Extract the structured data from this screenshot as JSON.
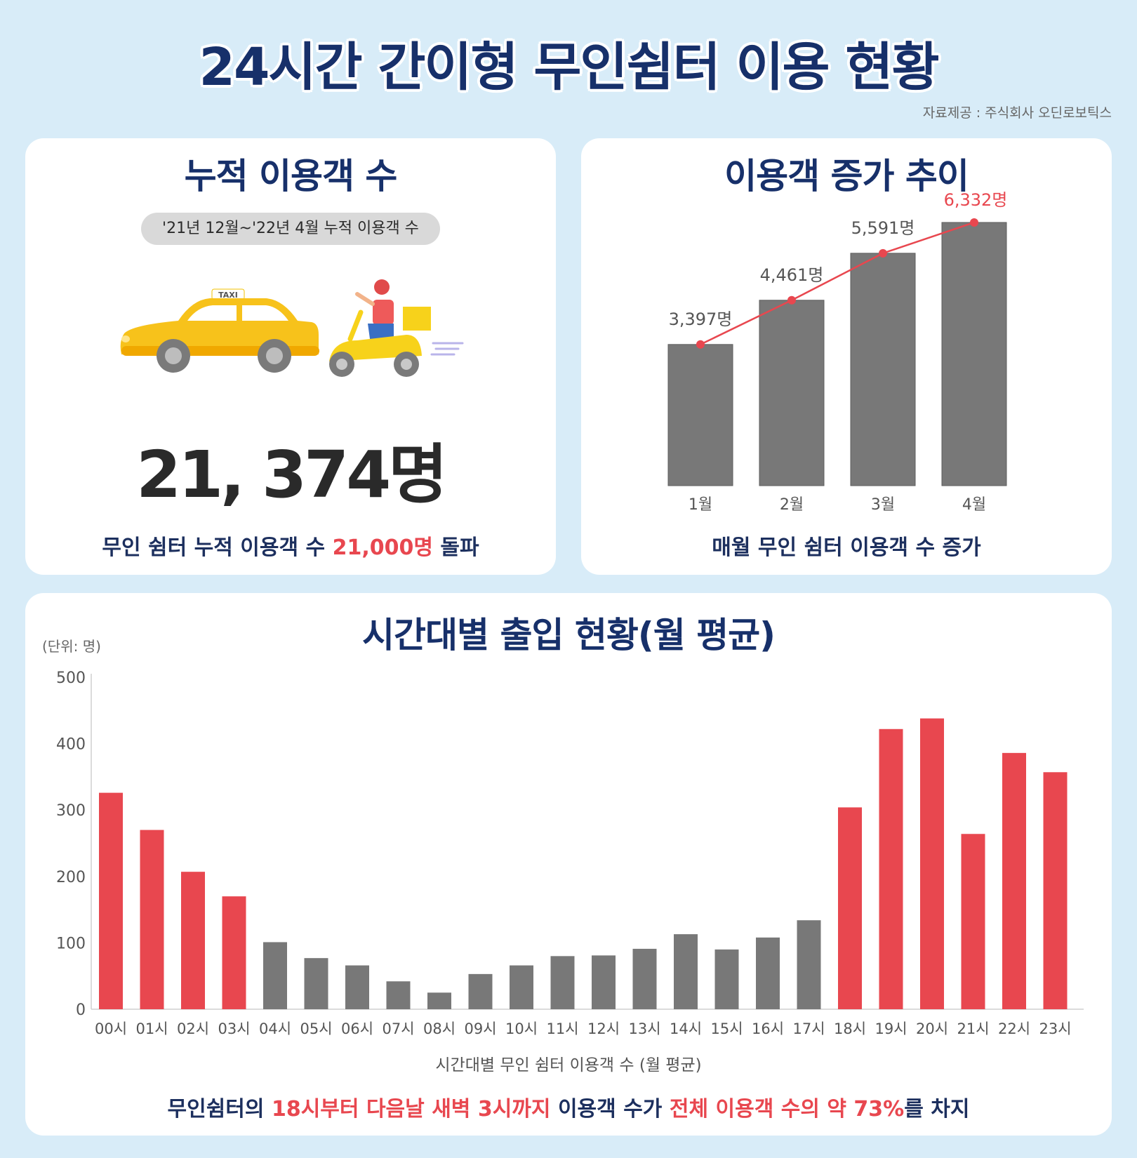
{
  "header": {
    "title": "24시간 간이형 무인쉼터 이용 현황",
    "source": "자료제공 : 주식회사 오딘로보틱스"
  },
  "cumulative": {
    "title": "누적 이용객 수",
    "period": "'21년 12월~'22년 4월 누적 이용객 수",
    "taxi_sign": "TAXI",
    "total": "21, 374명",
    "caption_pre": "무인 쉼터 누적 이용객 수 ",
    "caption_highlight": "21,000명",
    "caption_post": " 돌파"
  },
  "trend": {
    "title": "이용객 증가 추이",
    "caption": "매월 무인 쉼터 이용객 수 증가"
  },
  "hourly": {
    "title": "시간대별 출입 현황(월 평균)",
    "unit": "(단위: 명)",
    "caption_parts": [
      {
        "text": "무인쉼터의 ",
        "highlight": false
      },
      {
        "text": "18시부터 다음날 새벽 3시까지",
        "highlight": true
      },
      {
        "text": " 이용객 수가 ",
        "highlight": false
      },
      {
        "text": "전체 이용객 수의 약 73%",
        "highlight": true
      },
      {
        "text": "를 차지",
        "highlight": false
      }
    ]
  },
  "colors": {
    "navy": "#17306a",
    "red": "#e8474f",
    "gray_bar": "#787878",
    "background": "#d8ecf8"
  },
  "chart_data": [
    {
      "type": "bar",
      "title": "이용객 증가 추이",
      "categories": [
        "1월",
        "2월",
        "3월",
        "4월"
      ],
      "values": [
        3397,
        4461,
        5591,
        6332
      ],
      "data_labels": [
        "3,397명",
        "4,461명",
        "5,591명",
        "6,332명"
      ],
      "overlay_line": true,
      "highlight_last_label": true,
      "ylim": [
        0,
        6500
      ],
      "grid": false
    },
    {
      "type": "bar",
      "title": "시간대별 출입 현황(월 평균)",
      "xlabel": "시간대별 무인 쉼터 이용객 수 (월 평균)",
      "ylabel": "(단위: 명)",
      "categories": [
        "00시",
        "01시",
        "02시",
        "03시",
        "04시",
        "05시",
        "06시",
        "07시",
        "08시",
        "09시",
        "10시",
        "11시",
        "12시",
        "13시",
        "14시",
        "15시",
        "16시",
        "17시",
        "18시",
        "19시",
        "20시",
        "21시",
        "22시",
        "23시"
      ],
      "values": [
        326,
        270,
        207,
        170,
        101,
        77,
        66,
        42,
        25,
        53,
        66,
        80,
        81,
        91,
        113,
        90,
        108,
        134,
        304,
        422,
        438,
        264,
        386,
        357
      ],
      "highlighted": [
        true,
        true,
        true,
        true,
        false,
        false,
        false,
        false,
        false,
        false,
        false,
        false,
        false,
        false,
        false,
        false,
        false,
        false,
        true,
        true,
        true,
        true,
        true,
        true
      ],
      "yticks": [
        0,
        100,
        200,
        300,
        400,
        500
      ],
      "ylim": [
        0,
        500
      ],
      "grid": false
    }
  ]
}
